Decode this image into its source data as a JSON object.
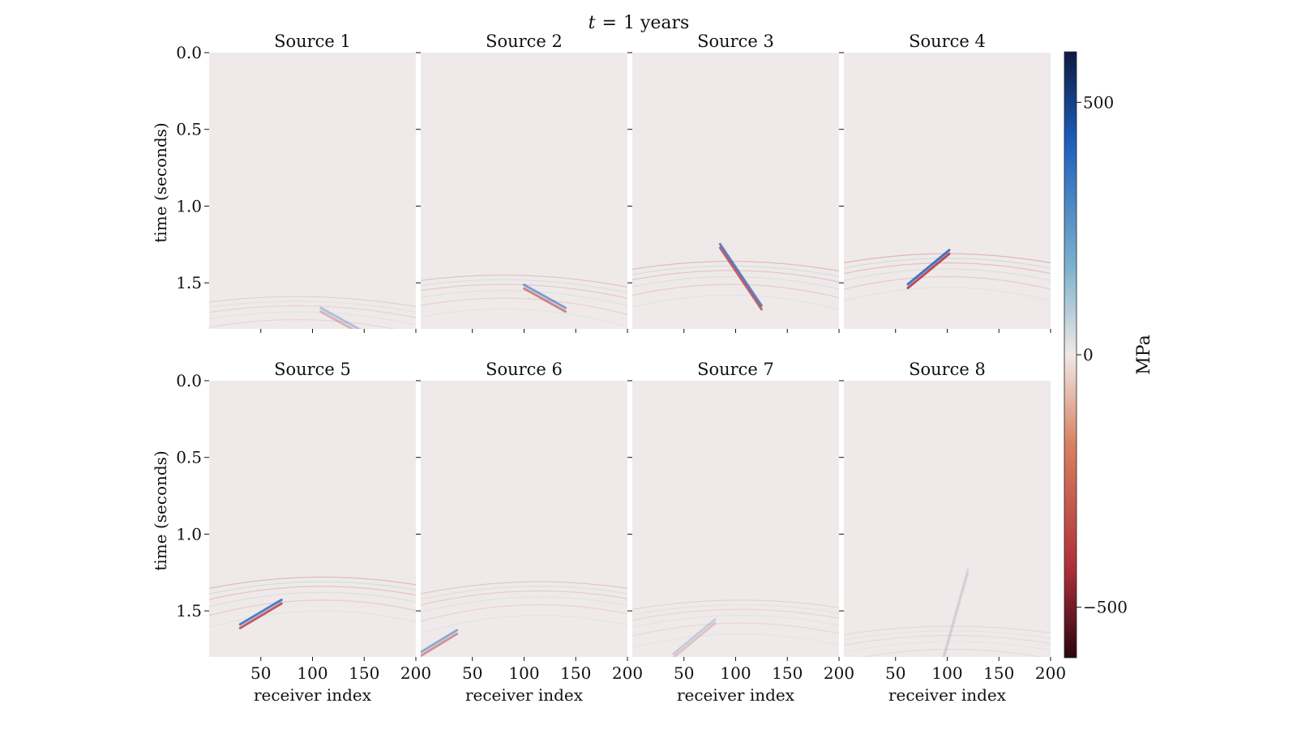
{
  "figure": {
    "title_var": "t",
    "title_eq": "=",
    "title_value": "1 years"
  },
  "chart_data": {
    "type": "heatmap",
    "xlabel": "receiver index",
    "ylabel": "time (seconds)",
    "xlim": [
      0,
      200
    ],
    "ylim": [
      1.8,
      0.0
    ],
    "x_ticks": [
      50,
      100,
      150,
      200
    ],
    "y_ticks": [
      0.0,
      0.5,
      1.0,
      1.5
    ],
    "x_tick_labels": [
      "50",
      "100",
      "150",
      "200"
    ],
    "y_tick_labels": [
      "0.0",
      "0.5",
      "1.0",
      "1.5"
    ],
    "background_color": "#efeae9",
    "panels": [
      {
        "title": "Source 1",
        "apex_receiver": 85,
        "apex_time": 1.59,
        "peak_receiver": 128,
        "peak_time": 1.75,
        "strength": 0.35
      },
      {
        "title": "Source 2",
        "apex_receiver": 80,
        "apex_time": 1.45,
        "peak_receiver": 120,
        "peak_time": 1.6,
        "strength": 0.65
      },
      {
        "title": "Source 3",
        "apex_receiver": 95,
        "apex_time": 1.36,
        "peak_receiver": 105,
        "peak_time": 1.46,
        "strength": 0.85
      },
      {
        "title": "Source 4",
        "apex_receiver": 100,
        "apex_time": 1.31,
        "peak_receiver": 82,
        "peak_time": 1.41,
        "strength": 1.0
      },
      {
        "title": "Source 5",
        "apex_receiver": 110,
        "apex_time": 1.28,
        "peak_receiver": 50,
        "peak_time": 1.52,
        "strength": 0.9
      },
      {
        "title": "Source 6",
        "apex_receiver": 115,
        "apex_time": 1.31,
        "peak_receiver": 15,
        "peak_time": 1.72,
        "strength": 0.55
      },
      {
        "title": "Source 7",
        "apex_receiver": 105,
        "apex_time": 1.43,
        "peak_receiver": 60,
        "peak_time": 1.68,
        "strength": 0.25
      },
      {
        "title": "Source 8",
        "apex_receiver": 105,
        "apex_time": 1.6,
        "peak_receiver": 100,
        "peak_time": 1.72,
        "strength": 0.12
      }
    ],
    "colorbar": {
      "label": "MPa",
      "range": [
        -600,
        600
      ],
      "ticks": [
        500,
        0,
        -500
      ],
      "tick_labels": [
        "500",
        "0",
        "−500"
      ],
      "colors": {
        "min": "#2a0510",
        "neg_mid": "#b0303a",
        "neg_low": "#d88060",
        "zero": "#efe8e6",
        "pos_low": "#7ab0cc",
        "pos_mid": "#1e5fbe",
        "max": "#0d1a40"
      }
    }
  }
}
